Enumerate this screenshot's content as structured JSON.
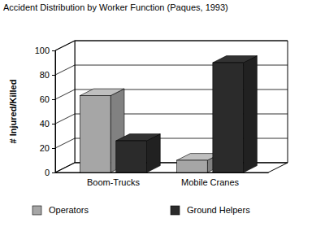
{
  "chart_data": {
    "type": "bar",
    "title": "Accident Distribution by Worker Function (Paques, 1993)",
    "y_label": "# Injured/Killed",
    "categories": [
      "Boom-Trucks",
      "Mobile Cranes"
    ],
    "series": [
      {
        "name": "Operators",
        "color": "#a6a6a6",
        "values": [
          63,
          10
        ]
      },
      {
        "name": "Ground Helpers",
        "color": "#2b2b2b",
        "values": [
          26,
          90
        ]
      }
    ],
    "ylim": [
      0,
      100
    ],
    "yticks": [
      0,
      20,
      40,
      60,
      80,
      100
    ],
    "legend": "bottom"
  }
}
